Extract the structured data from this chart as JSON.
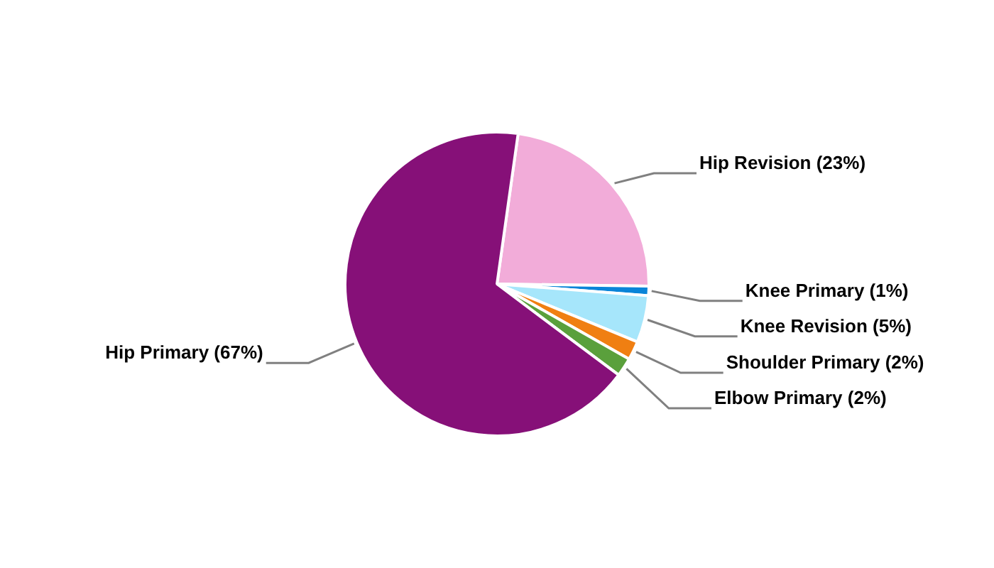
{
  "chart_data": {
    "type": "pie",
    "categories": [
      "Hip Revision (23%)",
      "Knee Primary (1%)",
      "Knee Revision (5%)",
      "Shoulder Primary (2%)",
      "Elbow Primary (2%)",
      "Hip Primary (67%)"
    ],
    "values": [
      23,
      1,
      5,
      2,
      2,
      67
    ],
    "colors": [
      "#f2acd9",
      "#0a84d8",
      "#a6e6fb",
      "#f07f12",
      "#5aa03c",
      "#861078"
    ],
    "legend": false
  }
}
